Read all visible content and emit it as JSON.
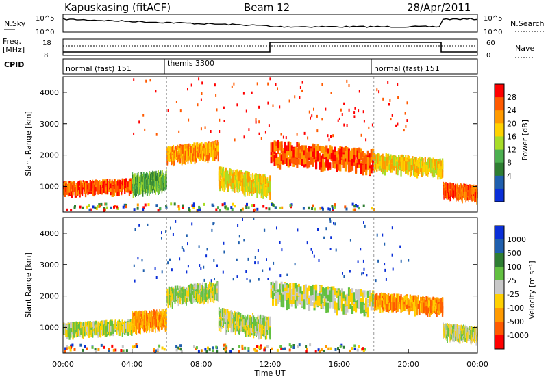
{
  "header": {
    "station": "Kapuskasing (fitACF)",
    "beam": "Beam 12",
    "date": "28/Apr/2011"
  },
  "panels": {
    "nsky_label": "N.Sky",
    "nsky_ticks": [
      "10^5",
      "10^0"
    ],
    "nsearch_label": "N.Search",
    "nsearch_ticks": [
      "10^5",
      "10^0"
    ],
    "freq_label": "Freq.",
    "freq_unit": "[MHz]",
    "freq_ticks": [
      "18",
      "8"
    ],
    "nave_label": "Nave",
    "nave_ticks": [
      "60",
      "0"
    ],
    "cpid_label": "CPID",
    "cpid_segments": [
      {
        "label": "normal (fast) 151",
        "start_ut": 0,
        "end_ut": 6
      },
      {
        "label": "themis 3300",
        "start_ut": 6,
        "end_ut": 18
      },
      {
        "label": "normal (fast) 151",
        "start_ut": 18,
        "end_ut": 24
      }
    ]
  },
  "colorbars": {
    "power": {
      "label": "Power [dB]",
      "ticks": [
        "28",
        "24",
        "20",
        "16",
        "12",
        "8",
        "4"
      ],
      "colors": [
        "#ff0000",
        "#ff5a00",
        "#ff9a00",
        "#ffd200",
        "#a8dc28",
        "#4caf50",
        "#2e7d32",
        "#1f5fae",
        "#0a2fd8"
      ]
    },
    "velocity": {
      "label": "Velocity [m s⁻¹]",
      "ticks": [
        "1000",
        "500",
        "100",
        "25",
        "-25",
        "-100",
        "-500",
        "-1000"
      ],
      "colors": [
        "#0a2fd8",
        "#1f5fae",
        "#2e7d32",
        "#62c040",
        "#c8c8c8",
        "#ffd000",
        "#ff9a00",
        "#ff5a00",
        "#ff0000"
      ]
    }
  },
  "chart_data": [
    {
      "type": "heatmap",
      "name": "power",
      "ylabel": "Slant Range [km]",
      "xlabel": "",
      "yticks": [
        "4000",
        "3000",
        "2000",
        "1000"
      ],
      "ylim": [
        180,
        4500
      ],
      "xlim": [
        0,
        24
      ],
      "bands": [
        {
          "x": [
            0,
            4
          ],
          "y_center": [
            1050,
            1150
          ],
          "width": 250,
          "level": 1
        },
        {
          "x": [
            4,
            6
          ],
          "y_center": [
            1200,
            1300
          ],
          "width": 500,
          "level": 5
        },
        {
          "x": [
            6,
            9
          ],
          "y_center": [
            2100,
            2300
          ],
          "width": 400,
          "level": 2
        },
        {
          "x": [
            9,
            12
          ],
          "y_center": [
            1400,
            1100
          ],
          "width": 500,
          "level": 3
        },
        {
          "x": [
            12,
            18
          ],
          "y_center": [
            2200,
            1900
          ],
          "width": 600,
          "level": 1
        },
        {
          "x": [
            18,
            22
          ],
          "y_center": [
            1900,
            1700
          ],
          "width": 400,
          "level": 3
        },
        {
          "x": [
            22,
            24
          ],
          "y_center": [
            1000,
            900
          ],
          "width": 300,
          "level": 1
        }
      ],
      "grid": false
    },
    {
      "type": "heatmap",
      "name": "velocity",
      "ylabel": "Slant Range [km]",
      "xlabel": "Time UT",
      "xticks": [
        "00:00",
        "04:00",
        "08:00",
        "12:00",
        "16:00",
        "20:00",
        "00:00"
      ],
      "yticks": [
        "4000",
        "3000",
        "2000",
        "1000"
      ],
      "ylim": [
        180,
        4500
      ],
      "xlim": [
        0,
        24
      ],
      "bands": [
        {
          "x": [
            0,
            4
          ],
          "y_center": [
            1050,
            1150
          ],
          "width": 250,
          "level": 4
        },
        {
          "x": [
            4,
            6
          ],
          "y_center": [
            1300,
            1400
          ],
          "width": 450,
          "level": 6
        },
        {
          "x": [
            6,
            9
          ],
          "y_center": [
            2100,
            2300
          ],
          "width": 400,
          "level": 4
        },
        {
          "x": [
            9,
            12
          ],
          "y_center": [
            1400,
            1100
          ],
          "width": 500,
          "level": 4
        },
        {
          "x": [
            12,
            18
          ],
          "y_center": [
            2200,
            1900
          ],
          "width": 600,
          "level": 4
        },
        {
          "x": [
            18,
            22
          ],
          "y_center": [
            1950,
            1800
          ],
          "width": 350,
          "level": 6
        },
        {
          "x": [
            22,
            24
          ],
          "y_center": [
            1000,
            900
          ],
          "width": 300,
          "level": 4
        }
      ],
      "grid": false
    }
  ]
}
